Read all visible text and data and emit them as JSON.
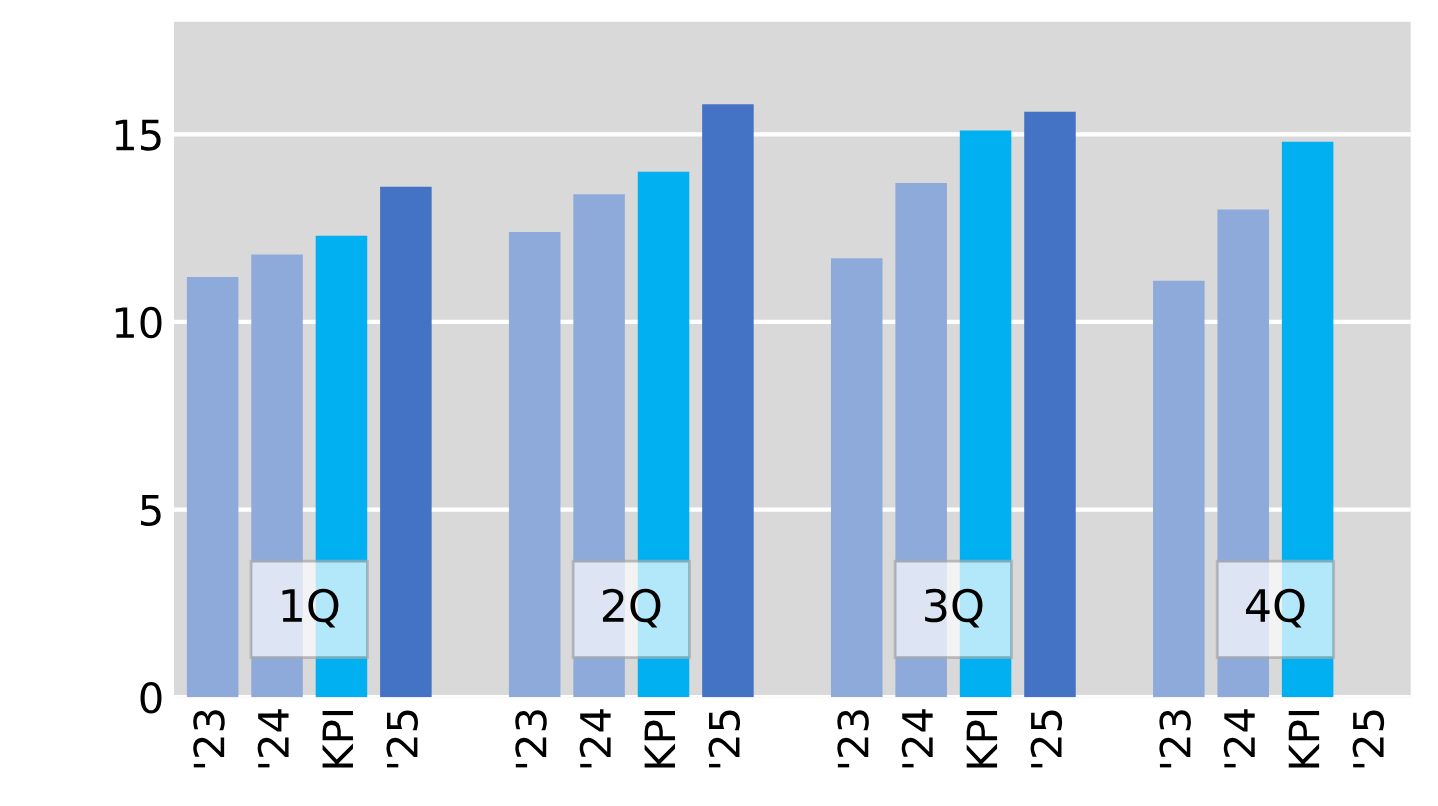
{
  "chart_data": {
    "type": "bar",
    "categories": [
      "'23",
      "'24",
      "KPI",
      "'25",
      null,
      "'23",
      "'24",
      "KPI",
      "'25",
      null,
      "'23",
      "'24",
      "KPI",
      "'25",
      null,
      "'23",
      "'24",
      "KPI",
      "'25"
    ],
    "values": [
      11.2,
      11.8,
      12.3,
      13.6,
      null,
      12.4,
      13.4,
      14.0,
      15.8,
      null,
      11.7,
      13.7,
      15.1,
      15.6,
      null,
      11.1,
      13.0,
      14.8,
      null
    ],
    "colors": [
      "#8eaadb",
      "#8eaadb",
      "#00b0f0",
      "#4472c4",
      "#d9d9d9",
      "#8eaadb",
      "#8eaadb",
      "#00b0f0",
      "#4472c4",
      "#d9d9d9",
      "#8eaadb",
      "#8eaadb",
      "#00b0f0",
      "#4472c4",
      "#d9d9d9",
      "#8eaadb",
      "#8eaadb",
      "#00b0f0",
      "#4472c4"
    ],
    "annotations": [
      "1Q",
      "2Q",
      "3Q",
      "4Q"
    ],
    "ylim": [
      0,
      18
    ],
    "yticks": [
      0,
      5,
      10,
      15
    ],
    "grid": "y"
  }
}
